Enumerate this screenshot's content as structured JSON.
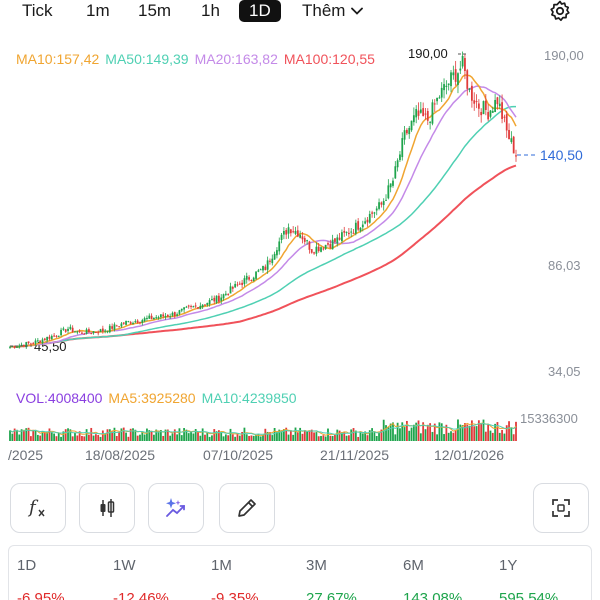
{
  "timeframes": {
    "tick": "Tick",
    "m1": "1m",
    "m15": "15m",
    "h1": "1h",
    "d1": "1D",
    "more": "Thêm"
  },
  "icons": {
    "settings": "gear-icon",
    "function": "function-icon",
    "candle": "candlestick-icon",
    "sparkle": "sparkle-chart-icon",
    "draw": "pencil-icon",
    "fullscreen": "fullscreen-icon"
  },
  "legend": {
    "ma10": "MA10:157,42",
    "ma50": "MA50:149,39",
    "ma20": "MA20:163,82",
    "ma100": "MA100:120,55"
  },
  "colors": {
    "ma10": "#f0a531",
    "ma50": "#4fd0b3",
    "ma20": "#c48ae8",
    "ma100": "#f0525a",
    "up": "#1ea44c",
    "down": "#e03a3a",
    "vol": "#8a3fe0",
    "current": "#2f6bd8"
  },
  "price_axis": {
    "top": "190,00",
    "mid": "86,03",
    "bottom": "34,05",
    "current": "140,50",
    "high_label": "190,00",
    "low_label": "45,50"
  },
  "volume": {
    "vol": "VOL:4008400",
    "ma5": "MA5:3925280",
    "ma10": "MA10:4239850",
    "axis_max": "15336300"
  },
  "dates": [
    "/2025",
    "18/08/2025",
    "07/10/2025",
    "21/11/2025",
    "12/01/2026"
  ],
  "performance": [
    {
      "label": "1D",
      "value": "-6,95%",
      "sign": "neg"
    },
    {
      "label": "1W",
      "value": "-12,46%",
      "sign": "neg"
    },
    {
      "label": "1M",
      "value": "-9,35%",
      "sign": "neg"
    },
    {
      "label": "3M",
      "value": "27,67%",
      "sign": "pos"
    },
    {
      "label": "6M",
      "value": "143,08%",
      "sign": "pos"
    },
    {
      "label": "1Y",
      "value": "595,54%",
      "sign": "pos"
    }
  ],
  "chart_data": {
    "type": "candlestick",
    "ylim": [
      34.05,
      190.0
    ],
    "current_price": 140.5,
    "period_high": 190.0,
    "period_low": 45.5,
    "x_ticks": [
      "/2025",
      "18/08/2025",
      "07/10/2025",
      "21/11/2025",
      "12/01/2026"
    ],
    "close_path": [
      [
        0,
        46
      ],
      [
        10,
        48
      ],
      [
        20,
        52
      ],
      [
        25,
        55
      ],
      [
        30,
        53
      ],
      [
        40,
        54
      ],
      [
        50,
        58
      ],
      [
        60,
        60
      ],
      [
        70,
        62
      ],
      [
        80,
        66
      ],
      [
        90,
        70
      ],
      [
        100,
        78
      ],
      [
        110,
        85
      ],
      [
        115,
        96
      ],
      [
        120,
        105
      ],
      [
        125,
        102
      ],
      [
        130,
        94
      ],
      [
        140,
        98
      ],
      [
        150,
        106
      ],
      [
        160,
        116
      ],
      [
        165,
        128
      ],
      [
        170,
        150
      ],
      [
        175,
        160
      ],
      [
        180,
        158
      ],
      [
        185,
        170
      ],
      [
        190,
        178
      ],
      [
        195,
        185
      ],
      [
        198,
        172
      ],
      [
        202,
        165
      ],
      [
        206,
        162
      ],
      [
        210,
        168
      ],
      [
        214,
        152
      ],
      [
        218,
        141
      ]
    ],
    "series": [
      {
        "name": "MA10",
        "last": 157.42
      },
      {
        "name": "MA20",
        "last": 163.82
      },
      {
        "name": "MA50",
        "last": 149.39
      },
      {
        "name": "MA100",
        "last": 120.55
      }
    ],
    "volume_last": 4008400,
    "volume_max": 15336300
  }
}
